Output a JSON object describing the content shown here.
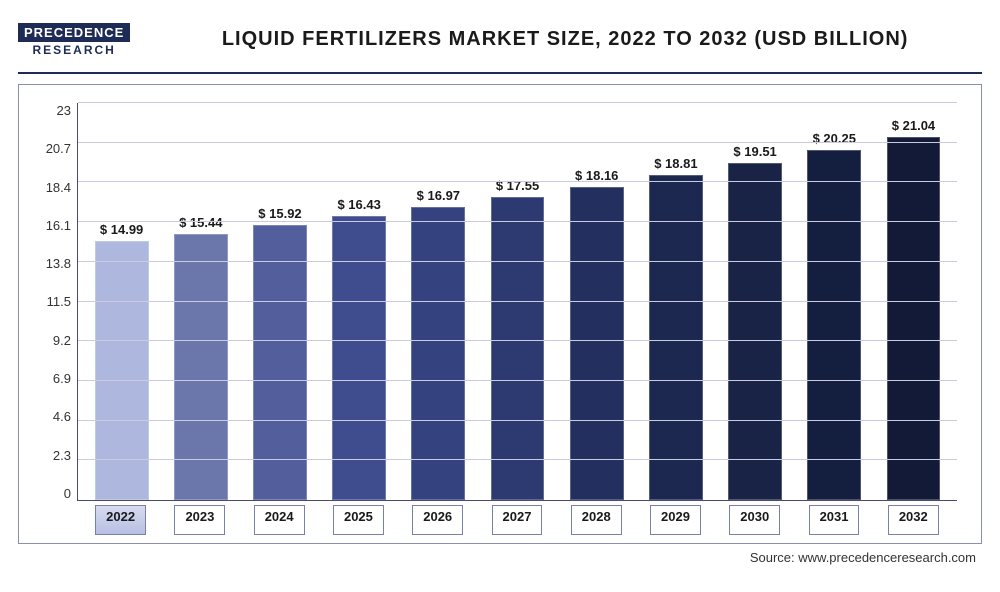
{
  "brand": {
    "top": "PRECEDENCE",
    "bottom": "RESEARCH"
  },
  "title": "LIQUID FERTILIZERS MARKET SIZE, 2022 TO 2032 (USD BILLION)",
  "source": "Source: www.precedenceresearch.com",
  "chart": {
    "type": "bar",
    "ylim": [
      0,
      23
    ],
    "yticks": [
      0,
      2.3,
      4.6,
      6.9,
      9.2,
      11.5,
      13.8,
      16.1,
      18.4,
      20.7,
      23
    ],
    "ytick_labels": [
      "0",
      "2.3",
      "4.6",
      "6.9",
      "9.2",
      "11.5",
      "13.8",
      "16.1",
      "18.4",
      "20.7",
      "23"
    ],
    "grid_color": "#c9cbe0",
    "axis_color": "#4a4a6a",
    "background_color": "#ffffff",
    "label_fontsize": 13,
    "label_fontweight": 700,
    "bar_width_pct": 68,
    "value_prefix": "$ ",
    "categories": [
      "2022",
      "2023",
      "2024",
      "2025",
      "2026",
      "2027",
      "2028",
      "2029",
      "2030",
      "2031",
      "2032"
    ],
    "values": [
      14.99,
      15.44,
      15.92,
      16.43,
      16.97,
      17.55,
      18.16,
      18.81,
      19.51,
      20.25,
      21.04
    ],
    "bar_colors": [
      "#aeb7dd",
      "#6b77ab",
      "#525f9c",
      "#3f4c8e",
      "#34427f",
      "#2d3a72",
      "#232f5e",
      "#1d2850",
      "#182346",
      "#141e3e",
      "#121a37"
    ],
    "active_category_index": 0,
    "xtick_box_border": "#7a80a8",
    "xtick_active_bg_top": "#d7dcf0",
    "xtick_active_bg_bottom": "#b7bfe3"
  }
}
